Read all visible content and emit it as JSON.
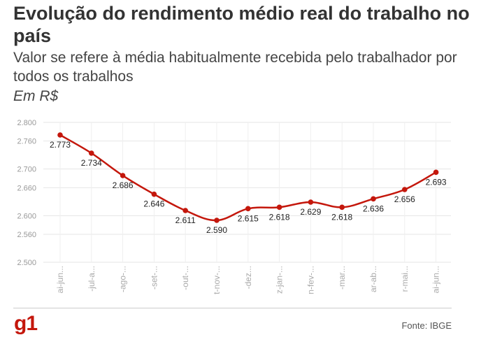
{
  "header": {
    "title": "Evolução do rendimento médio real do trabalho no país",
    "subtitle": "Valor se refere à média habitualmente recebida pelo trabalhador por todos os trabalhos",
    "unit": "Em R$"
  },
  "footer": {
    "logo": "g1",
    "source": "Fonte: IBGE"
  },
  "chart_data": {
    "type": "line",
    "title": "Evolução do rendimento médio real do trabalho no país",
    "subtitle": "Valor se refere à média habitualmente recebida pelo trabalhador por todos os trabalhos",
    "ylabel": "Em R$",
    "ylim": [
      2500,
      2800
    ],
    "yticks": [
      "2.800",
      "2.760",
      "2.700",
      "2.660",
      "2.600",
      "2.560",
      "2.500"
    ],
    "ytick_values": [
      2800,
      2760,
      2700,
      2660,
      2600,
      2560,
      2500
    ],
    "categories": [
      "ai-jun...",
      "-jul-a...",
      "-ago-...",
      "-set-...",
      "-out-...",
      "t-nov-...",
      "-dez...",
      "z-jan-...",
      "n-fev-...",
      "-mar...",
      "ar-ab...",
      "r-mai...",
      "ai-jun..."
    ],
    "values": [
      2773,
      2734,
      2686,
      2646,
      2611,
      2590,
      2615,
      2618,
      2629,
      2618,
      2636,
      2656,
      2693
    ],
    "value_labels": [
      "2.773",
      "2.734",
      "2.686",
      "2.646",
      "2.611",
      "2.590",
      "2.615",
      "2.618",
      "2.629",
      "2.618",
      "2.636",
      "2.656",
      "2.693"
    ],
    "line_color": "#c4170c",
    "grid": true,
    "legend": "none"
  }
}
